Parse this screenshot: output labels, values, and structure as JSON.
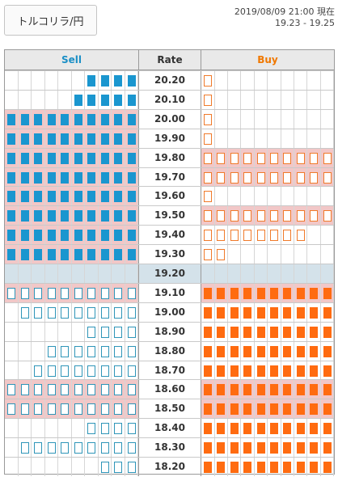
{
  "pair_button": {
    "label": "トルコリラ/円"
  },
  "info": {
    "timestamp": "2019/08/09 21:00 現在",
    "range": "19.23 - 19.25"
  },
  "headers": {
    "sell": "Sell",
    "rate": "Rate",
    "buy": "Buy"
  },
  "colors": {
    "sell": "#1a96cf",
    "buy": "#ff6b10",
    "highlight": "#f2c7c7",
    "mid": "#d4e2ea"
  },
  "rows": [
    {
      "rate": "20.20",
      "sell": 4,
      "sell_type": "fill",
      "buy": 1,
      "buy_type": "out",
      "hl": false
    },
    {
      "rate": "20.10",
      "sell": 5,
      "sell_type": "fill",
      "buy": 1,
      "buy_type": "out",
      "hl": false
    },
    {
      "rate": "20.00",
      "sell": 10,
      "sell_type": "fill",
      "buy": 1,
      "buy_type": "out",
      "hl": true
    },
    {
      "rate": "19.90",
      "sell": 10,
      "sell_type": "fill",
      "buy": 1,
      "buy_type": "out",
      "hl": true
    },
    {
      "rate": "19.80",
      "sell": 10,
      "sell_type": "fill",
      "buy": 10,
      "buy_type": "out",
      "hl": true
    },
    {
      "rate": "19.70",
      "sell": 10,
      "sell_type": "fill",
      "buy": 10,
      "buy_type": "out",
      "hl": true
    },
    {
      "rate": "19.60",
      "sell": 10,
      "sell_type": "fill",
      "buy": 1,
      "buy_type": "out",
      "hl": true
    },
    {
      "rate": "19.50",
      "sell": 10,
      "sell_type": "fill",
      "buy": 10,
      "buy_type": "out",
      "hl": true
    },
    {
      "rate": "19.40",
      "sell": 10,
      "sell_type": "fill",
      "buy": 8,
      "buy_type": "out",
      "hl": true
    },
    {
      "rate": "19.30",
      "sell": 10,
      "sell_type": "fill",
      "buy": 2,
      "buy_type": "out",
      "hl": true
    },
    {
      "rate": "19.20",
      "sell": 0,
      "sell_type": "fill",
      "buy": 0,
      "buy_type": "fill",
      "hl": false,
      "mid": true
    },
    {
      "rate": "19.10",
      "sell": 10,
      "sell_type": "out",
      "buy": 10,
      "buy_type": "fill",
      "hl": true
    },
    {
      "rate": "19.00",
      "sell": 9,
      "sell_type": "out",
      "buy": 10,
      "buy_type": "fill",
      "hl": false
    },
    {
      "rate": "18.90",
      "sell": 4,
      "sell_type": "out",
      "buy": 10,
      "buy_type": "fill",
      "hl": false
    },
    {
      "rate": "18.80",
      "sell": 7,
      "sell_type": "out",
      "buy": 10,
      "buy_type": "fill",
      "hl": false
    },
    {
      "rate": "18.70",
      "sell": 8,
      "sell_type": "out",
      "buy": 10,
      "buy_type": "fill",
      "hl": false
    },
    {
      "rate": "18.60",
      "sell": 10,
      "sell_type": "out",
      "buy": 10,
      "buy_type": "fill",
      "hl": true
    },
    {
      "rate": "18.50",
      "sell": 10,
      "sell_type": "out",
      "buy": 10,
      "buy_type": "fill",
      "hl": true
    },
    {
      "rate": "18.40",
      "sell": 4,
      "sell_type": "out",
      "buy": 10,
      "buy_type": "fill",
      "hl": false
    },
    {
      "rate": "18.30",
      "sell": 9,
      "sell_type": "out",
      "buy": 10,
      "buy_type": "fill",
      "hl": false
    },
    {
      "rate": "18.20",
      "sell": 3,
      "sell_type": "out",
      "buy": 10,
      "buy_type": "fill",
      "hl": false
    }
  ]
}
